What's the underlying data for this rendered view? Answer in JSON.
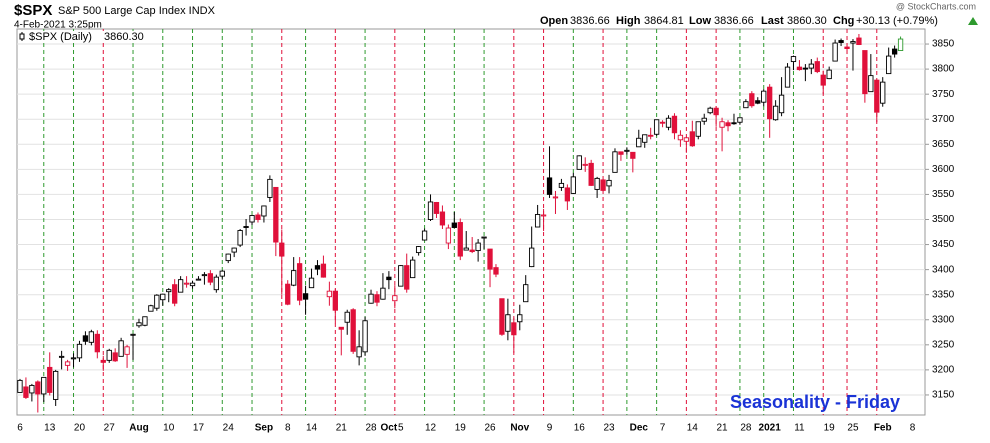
{
  "chart_data": {
    "type": "candlestick",
    "title": "$SPX",
    "subtitle": "S&P 500 Large Cap Index INDX",
    "date": "4-Feb-2021 3:25pm",
    "watermark": "@ StockCharts.com",
    "quote": {
      "open_label": "Open",
      "open": "3836.66",
      "high_label": "High",
      "high": "3864.81",
      "low_label": "Low",
      "low": "3836.66",
      "last_label": "Last",
      "last": "3860.30",
      "chg_label": "Chg",
      "chg": "+30.13 (+0.79%)"
    },
    "legend_label": "$SPX (Daily)",
    "legend_value": "3860.30",
    "annotation": "Seasonality - Friday",
    "categories": [
      "6",
      null,
      null,
      null,
      null,
      "13",
      null,
      null,
      null,
      null,
      "20",
      null,
      null,
      null,
      null,
      "27",
      null,
      null,
      null,
      null,
      "Aug",
      null,
      null,
      null,
      null,
      "10",
      null,
      null,
      null,
      null,
      "17",
      null,
      null,
      null,
      null,
      "24",
      null,
      null,
      null,
      null,
      null,
      "Sep",
      null,
      null,
      null,
      "8",
      null,
      null,
      null,
      "14",
      null,
      null,
      null,
      null,
      "21",
      null,
      null,
      null,
      null,
      "28",
      null,
      null,
      "Oct",
      null,
      "5",
      null,
      null,
      null,
      null,
      "12",
      null,
      null,
      null,
      null,
      "19",
      null,
      null,
      null,
      null,
      "26",
      null,
      null,
      null,
      null,
      "Nov",
      null,
      null,
      null,
      null,
      "9",
      null,
      null,
      null,
      null,
      "16",
      null,
      null,
      null,
      null,
      "23",
      null,
      null,
      null,
      null,
      "Dec",
      null,
      null,
      null,
      "7",
      null,
      null,
      null,
      null,
      "14",
      null,
      null,
      null,
      null,
      "21",
      null,
      null,
      null,
      "28",
      null,
      null,
      null,
      "2021",
      null,
      null,
      null,
      null,
      "11",
      null,
      null,
      null,
      null,
      "19",
      null,
      null,
      null,
      "25",
      null,
      null,
      null,
      null,
      "Feb",
      null,
      null,
      null,
      null,
      "8"
    ],
    "open": [
      3155,
      3166,
      3154,
      3176,
      3152,
      3205,
      3141,
      3225,
      3209,
      3224,
      3224,
      3268,
      3255,
      3271,
      3219,
      3219,
      3234,
      3227,
      3231,
      3270,
      3288,
      3289,
      3317,
      3323,
      3340,
      3356,
      3370,
      3355,
      3372,
      3368,
      3380,
      3388,
      3392,
      3360,
      3387,
      3418,
      3435,
      3449,
      3486,
      3495,
      3509,
      3507,
      3544,
      3564,
      3453,
      3371,
      3369,
      3412,
      3352,
      3364,
      3408,
      3411,
      3346,
      3357,
      3285,
      3295,
      3320,
      3226,
      3236,
      3333,
      3350,
      3341,
      3385,
      3338,
      3367,
      3408,
      3384,
      3434,
      3459,
      3500,
      3534,
      3515,
      3453,
      3493,
      3494,
      3439,
      3439,
      3438,
      3464,
      3441,
      3404,
      3342,
      3277,
      3294,
      3296,
      3336,
      3406,
      3485,
      3508,
      3583,
      3544,
      3564,
      3563,
      3552,
      3600,
      3610,
      3612,
      3560,
      3579,
      3567,
      3594,
      3635,
      3638,
      3634,
      3645,
      3654,
      3668,
      3670,
      3694,
      3684,
      3706,
      3659,
      3656,
      3675,
      3666,
      3696,
      3713,
      3722,
      3684,
      3693,
      3693,
      3694,
      3723,
      3751,
      3737,
      3734,
      3764,
      3699,
      3713,
      3764,
      3815,
      3804,
      3802,
      3802,
      3815,
      3788,
      3781,
      3816,
      3857,
      3844,
      3852,
      3862,
      3837,
      3755,
      3778,
      3732,
      3791,
      3840,
      3837,
      null,
      null
    ],
    "high": [
      3182,
      3185,
      3172,
      3179,
      3186,
      3235,
      3200,
      3238,
      3220,
      3233,
      3258,
      3277,
      3280,
      3279,
      3228,
      3242,
      3243,
      3264,
      3250,
      3272,
      3302,
      3306,
      3330,
      3351,
      3352,
      3363,
      3381,
      3387,
      3387,
      3378,
      3387,
      3395,
      3399,
      3390,
      3399,
      3432,
      3444,
      3481,
      3501,
      3509,
      3514,
      3528,
      3588,
      3564,
      3480,
      3379,
      3425,
      3425,
      3368,
      3402,
      3419,
      3428,
      3376,
      3362,
      3285,
      3320,
      3323,
      3279,
      3306,
      3360,
      3357,
      3393,
      3397,
      3369,
      3409,
      3432,
      3426,
      3447,
      3482,
      3550,
      3535,
      3528,
      3490,
      3515,
      3502,
      3477,
      3465,
      3461,
      3466,
      3441,
      3411,
      3342,
      3342,
      3304,
      3330,
      3389,
      3486,
      3529,
      3521,
      3646,
      3557,
      3581,
      3570,
      3593,
      3628,
      3624,
      3619,
      3585,
      3581,
      3589,
      3642,
      3635,
      3644,
      3634,
      3679,
      3668,
      3683,
      3699,
      3698,
      3708,
      3712,
      3678,
      3665,
      3697,
      3695,
      3711,
      3725,
      3726,
      3703,
      3698,
      3711,
      3703,
      3740,
      3756,
      3744,
      3760,
      3770,
      3738,
      3784,
      3812,
      3827,
      3818,
      3810,
      3820,
      3823,
      3797,
      3805,
      3859,
      3861,
      3852,
      3860,
      3870,
      3837,
      3830,
      3779,
      3784,
      3843,
      3847,
      3865,
      null,
      null
    ],
    "low": [
      3155,
      3142,
      3137,
      3115,
      3136,
      3149,
      3128,
      3201,
      3198,
      3205,
      3216,
      3250,
      3249,
      3223,
      3198,
      3214,
      3216,
      3227,
      3204,
      3220,
      3284,
      3287,
      3317,
      3318,
      3328,
      3335,
      3327,
      3355,
      3364,
      3362,
      3379,
      3370,
      3369,
      3354,
      3380,
      3413,
      3425,
      3445,
      3468,
      3489,
      3494,
      3494,
      3535,
      3427,
      3350,
      3329,
      3367,
      3329,
      3310,
      3364,
      3389,
      3384,
      3328,
      3293,
      3229,
      3270,
      3232,
      3209,
      3228,
      3332,
      3327,
      3340,
      3361,
      3323,
      3367,
      3354,
      3384,
      3428,
      3458,
      3497,
      3503,
      3481,
      3441,
      3483,
      3419,
      3439,
      3433,
      3416,
      3441,
      3365,
      3385,
      3268,
      3259,
      3234,
      3279,
      3336,
      3405,
      3485,
      3477,
      3543,
      3511,
      3557,
      3519,
      3552,
      3600,
      3595,
      3567,
      3543,
      3556,
      3552,
      3594,
      3617,
      3629,
      3594,
      3645,
      3643,
      3660,
      3667,
      3684,
      3678,
      3660,
      3645,
      3633,
      3645,
      3660,
      3689,
      3710,
      3685,
      3636,
      3676,
      3689,
      3689,
      3723,
      3723,
      3730,
      3726,
      3663,
      3697,
      3706,
      3764,
      3798,
      3797,
      3776,
      3790,
      3792,
      3750,
      3780,
      3816,
      3846,
      3830,
      3797,
      3848,
      3733,
      3755,
      3694,
      3725,
      3791,
      3823,
      3837,
      null,
      null
    ],
    "close": [
      3179,
      3145,
      3169,
      3152,
      3185,
      3155,
      3197,
      3227,
      3216,
      3224,
      3251,
      3257,
      3276,
      3236,
      3215,
      3239,
      3218,
      3258,
      3246,
      3271,
      3294,
      3306,
      3328,
      3349,
      3351,
      3360,
      3333,
      3380,
      3373,
      3373,
      3381,
      3390,
      3375,
      3385,
      3397,
      3431,
      3443,
      3478,
      3484,
      3508,
      3500,
      3527,
      3580,
      3455,
      3427,
      3331,
      3398,
      3339,
      3341,
      3383,
      3401,
      3385,
      3357,
      3319,
      3281,
      3315,
      3237,
      3246,
      3298,
      3351,
      3335,
      3363,
      3380,
      3348,
      3408,
      3361,
      3419,
      3446,
      3477,
      3535,
      3512,
      3489,
      3483,
      3484,
      3427,
      3443,
      3436,
      3453,
      3465,
      3401,
      3391,
      3271,
      3310,
      3270,
      3310,
      3370,
      3443,
      3510,
      3509,
      3550,
      3545,
      3572,
      3537,
      3585,
      3627,
      3610,
      3568,
      3582,
      3558,
      3578,
      3635,
      3630,
      3638,
      3622,
      3662,
      3669,
      3666,
      3699,
      3692,
      3702,
      3673,
      3668,
      3663,
      3647,
      3695,
      3702,
      3722,
      3709,
      3695,
      3687,
      3691,
      3703,
      3735,
      3727,
      3732,
      3756,
      3701,
      3726,
      3748,
      3804,
      3825,
      3799,
      3801,
      3810,
      3795,
      3768,
      3798,
      3852,
      3853,
      3841,
      3855,
      3849,
      3751,
      3787,
      3714,
      3774,
      3826,
      3830,
      3860,
      null,
      null
    ],
    "friday_index": [
      4,
      9,
      14,
      19,
      24,
      29,
      34,
      39,
      44,
      48,
      53,
      58,
      63,
      68,
      73,
      78,
      83,
      88,
      93,
      98,
      102,
      107,
      112,
      117,
      121,
      125,
      130,
      135,
      139,
      144
    ],
    "up_color": "#2e9a2e",
    "down_color": "#e0103a",
    "neutral_color": "#000000",
    "last_color": "#2e9a2e",
    "ylim": [
      3110,
      3880
    ],
    "yticks": [
      3150,
      3200,
      3250,
      3300,
      3350,
      3400,
      3450,
      3500,
      3550,
      3600,
      3650,
      3700,
      3750,
      3800,
      3850
    ],
    "grid": true
  }
}
